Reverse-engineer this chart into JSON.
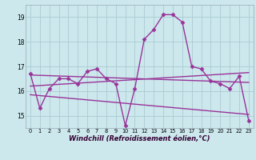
{
  "background_color": "#cce8ec",
  "grid_color": "#aaccd4",
  "line_color": "#993399",
  "marker_color": "#993399",
  "xlabel": "Windchill (Refroidissement éolien,°C)",
  "xlim": [
    -0.5,
    23.5
  ],
  "ylim": [
    14.5,
    19.5
  ],
  "yticks": [
    15,
    16,
    17,
    18,
    19
  ],
  "xticks": [
    0,
    1,
    2,
    3,
    4,
    5,
    6,
    7,
    8,
    9,
    10,
    11,
    12,
    13,
    14,
    15,
    16,
    17,
    18,
    19,
    20,
    21,
    22,
    23
  ],
  "series_main": {
    "x": [
      0,
      1,
      2,
      3,
      4,
      5,
      6,
      7,
      8,
      9,
      10,
      11,
      12,
      13,
      14,
      15,
      16,
      17,
      18,
      19,
      20,
      21,
      22,
      23
    ],
    "y": [
      16.7,
      15.3,
      16.1,
      16.5,
      16.5,
      16.3,
      16.8,
      16.9,
      16.5,
      16.3,
      14.6,
      16.1,
      18.1,
      18.5,
      19.1,
      19.1,
      18.8,
      17.0,
      16.9,
      16.4,
      16.3,
      16.1,
      16.6,
      14.8
    ]
  },
  "trend_lines": [
    {
      "x": [
        0,
        23
      ],
      "y": [
        16.65,
        16.35
      ]
    },
    {
      "x": [
        0,
        23
      ],
      "y": [
        15.85,
        15.05
      ]
    },
    {
      "x": [
        0,
        23
      ],
      "y": [
        16.2,
        16.75
      ]
    }
  ],
  "xlabel_fontsize": 6,
  "tick_fontsize": 5.5,
  "linewidth": 1.0,
  "markersize": 2.5
}
